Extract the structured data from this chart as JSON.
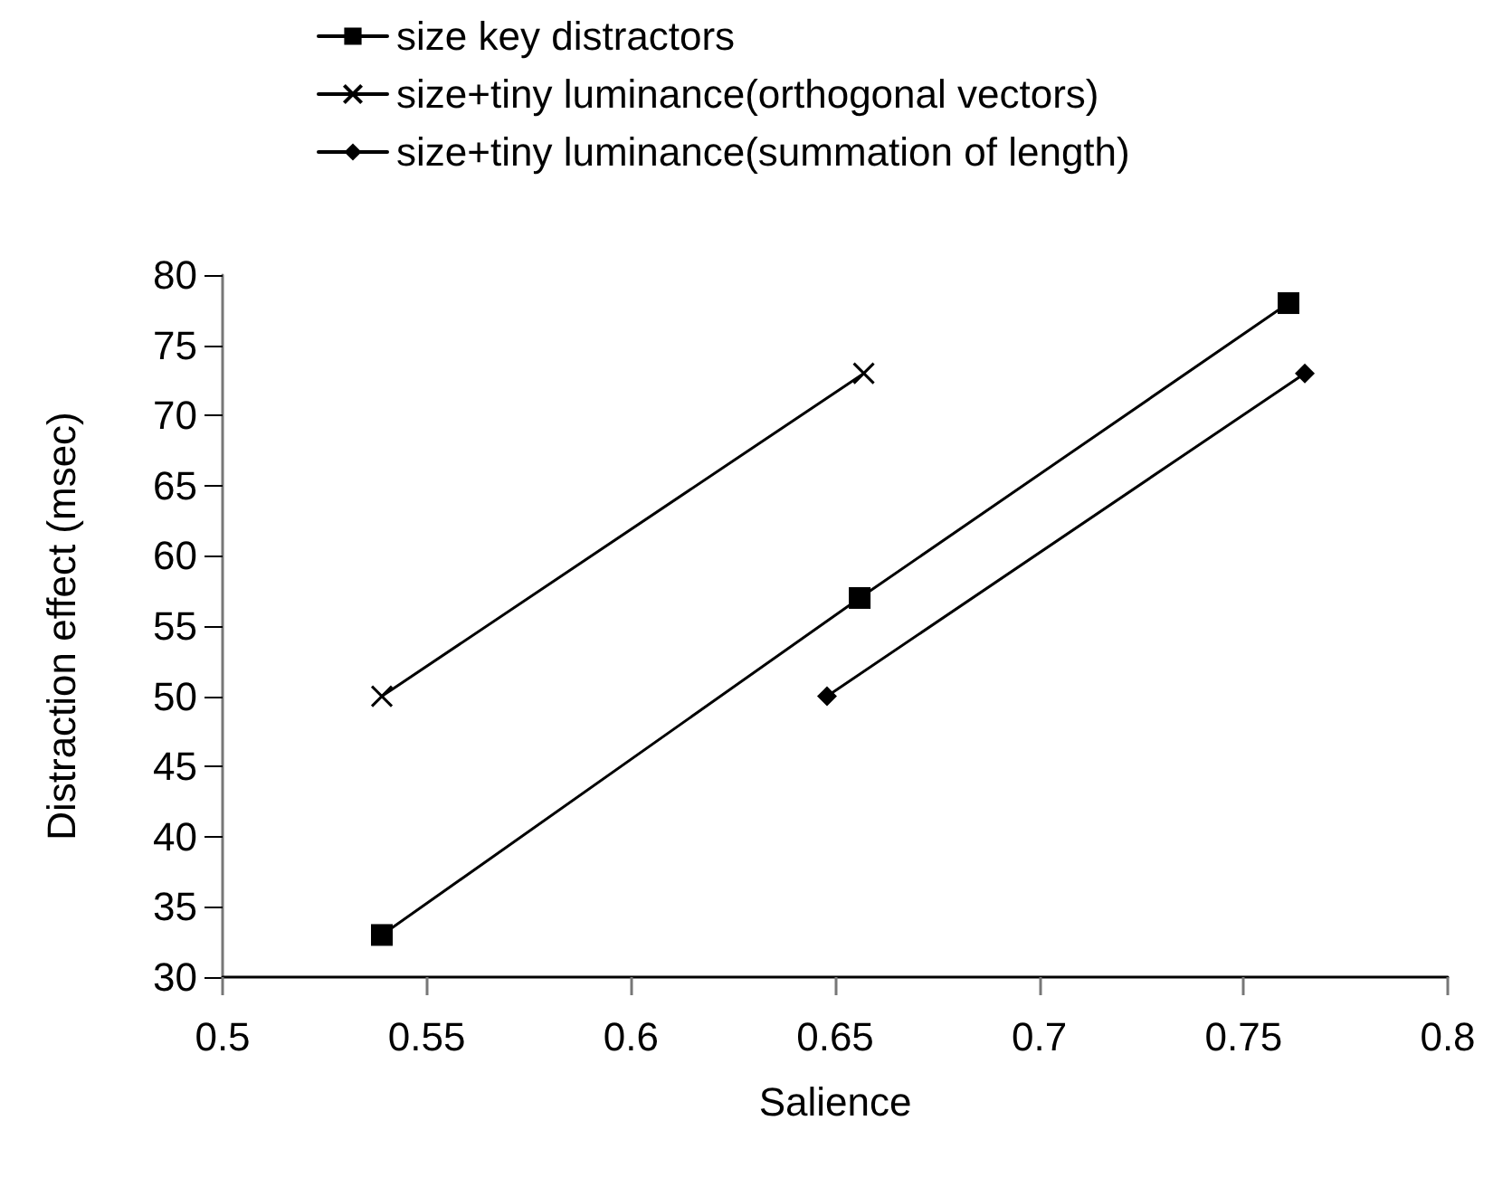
{
  "chart_data": {
    "type": "line",
    "xlabel": "Salience",
    "ylabel": "Distraction effect (msec)",
    "series": [
      {
        "name": "size key distractors",
        "color": "#000000",
        "marker": "square",
        "x": [
          0.539,
          0.656,
          0.761
        ],
        "values": [
          33,
          57,
          78
        ]
      },
      {
        "name": "size+tiny luminance(orthogonal vectors)",
        "color": "#000000",
        "marker": "cross",
        "x": [
          0.539,
          0.657
        ],
        "values": [
          50,
          73
        ]
      },
      {
        "name": "size+tiny luminance(summation of length)",
        "color": "#000000",
        "marker": "diamond",
        "x": [
          0.648,
          0.765
        ],
        "values": [
          50,
          73
        ]
      }
    ],
    "xlim": [
      0.5,
      0.8
    ],
    "xticks": [
      0.5,
      0.55,
      0.6,
      0.65,
      0.7,
      0.75,
      0.8
    ],
    "ylim": [
      30,
      80
    ],
    "yticks": [
      30,
      35,
      40,
      45,
      50,
      55,
      60,
      65,
      70,
      75,
      80
    ],
    "grid": false,
    "legend": "top"
  }
}
